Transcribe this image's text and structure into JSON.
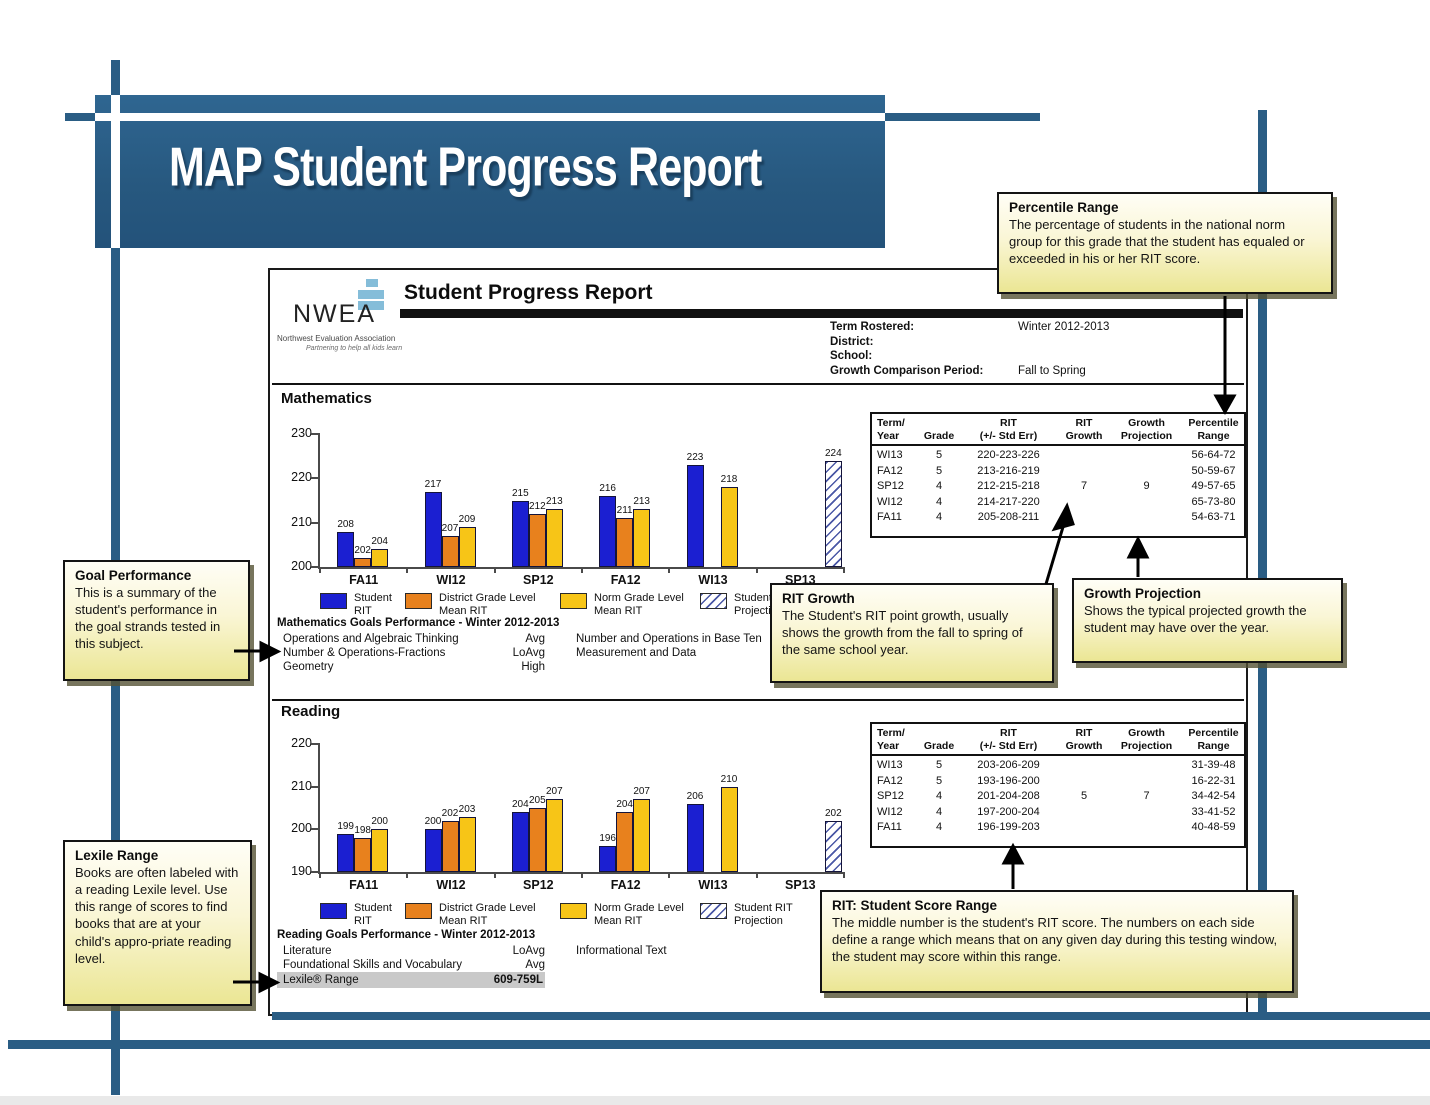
{
  "banner": {
    "title": "MAP Student Progress Report"
  },
  "report_header": {
    "logo": {
      "name": "NWEA",
      "subtitle": "Northwest Evaluation Association",
      "tagline": "Partnering to help all kids learn"
    },
    "title": "Student Progress Report",
    "info_rows": [
      {
        "label": "Term Rostered:",
        "value": "Winter 2012-2013"
      },
      {
        "label": "District:",
        "value": ""
      },
      {
        "label": "School:",
        "value": ""
      },
      {
        "label": "Growth Comparison Period:",
        "value": "Fall to Spring"
      }
    ]
  },
  "sections": {
    "math": "Mathematics",
    "reading": "Reading"
  },
  "legend": {
    "items": [
      {
        "key": "student-rit",
        "label": "Student RIT",
        "color": "#1b1fd1",
        "type": "solid"
      },
      {
        "key": "district-grade-mean",
        "label": "District Grade Level Mean RIT",
        "color": "#e8811d",
        "type": "solid"
      },
      {
        "key": "norm-grade-mean",
        "label": "Norm Grade Level Mean RIT",
        "color": "#f7c517",
        "type": "solid"
      },
      {
        "key": "student-rit-projection",
        "label": "Student RIT Projection",
        "color": "#2a3a96",
        "type": "hatched"
      }
    ]
  },
  "chart_data": [
    {
      "type": "bar",
      "title": "Mathematics",
      "categories": [
        "FA11",
        "WI12",
        "SP12",
        "FA12",
        "WI13",
        "SP13"
      ],
      "series": [
        {
          "name": "Student RIT",
          "values": [
            208,
            217,
            215,
            216,
            223,
            null
          ]
        },
        {
          "name": "District Grade Level Mean RIT",
          "values": [
            202,
            207,
            212,
            211,
            null,
            null
          ]
        },
        {
          "name": "Norm Grade Level Mean RIT",
          "values": [
            204,
            209,
            213,
            213,
            218,
            null
          ]
        },
        {
          "name": "Student RIT Projection",
          "values": [
            null,
            null,
            null,
            null,
            null,
            224
          ]
        }
      ],
      "ylim": [
        200,
        230
      ],
      "yticks": [
        230,
        220,
        210,
        200
      ],
      "grid": false,
      "legend_position": "bottom"
    },
    {
      "type": "bar",
      "title": "Reading",
      "categories": [
        "FA11",
        "WI12",
        "SP12",
        "FA12",
        "WI13",
        "SP13"
      ],
      "series": [
        {
          "name": "Student RIT",
          "values": [
            199,
            200,
            204,
            196,
            206,
            null
          ]
        },
        {
          "name": "District Grade Level Mean RIT",
          "values": [
            198,
            202,
            205,
            204,
            null,
            null
          ]
        },
        {
          "name": "Norm Grade Level Mean RIT",
          "values": [
            200,
            203,
            207,
            207,
            210,
            null
          ]
        },
        {
          "name": "Student RIT Projection",
          "values": [
            null,
            null,
            null,
            null,
            null,
            202
          ]
        }
      ],
      "ylim": [
        190,
        220
      ],
      "yticks": [
        220,
        210,
        200,
        190
      ],
      "grid": false,
      "legend_position": "bottom"
    }
  ],
  "rit_tables": {
    "headers": [
      "Term/\nYear",
      "Grade",
      "RIT\n(+/- Std Err)",
      "RIT\nGrowth",
      "Growth\nProjection",
      "Percentile\nRange"
    ],
    "math_rows": [
      [
        "WI13",
        "5",
        "220-223-226",
        "",
        "",
        "56-64-72"
      ],
      [
        "FA12",
        "5",
        "213-216-219",
        "",
        "",
        "50-59-67"
      ],
      [
        "SP12",
        "4",
        "212-215-218",
        "7",
        "9",
        "49-57-65"
      ],
      [
        "WI12",
        "4",
        "214-217-220",
        "",
        "",
        "65-73-80"
      ],
      [
        "FA11",
        "4",
        "205-208-211",
        "",
        "",
        "54-63-71"
      ]
    ],
    "reading_rows": [
      [
        "WI13",
        "5",
        "203-206-209",
        "",
        "",
        "31-39-48"
      ],
      [
        "FA12",
        "5",
        "193-196-200",
        "",
        "",
        "16-22-31"
      ],
      [
        "SP12",
        "4",
        "201-204-208",
        "5",
        "7",
        "34-42-54"
      ],
      [
        "WI12",
        "4",
        "197-200-204",
        "",
        "",
        "33-41-52"
      ],
      [
        "FA11",
        "4",
        "196-199-203",
        "",
        "",
        "40-48-59"
      ]
    ]
  },
  "goals": {
    "math": {
      "title": "Mathematics Goals Performance - Winter 2012-2013",
      "left": [
        {
          "name": "Operations and Algebraic Thinking",
          "value": "Avg"
        },
        {
          "name": "Number & Operations-Fractions",
          "value": "LoAvg"
        },
        {
          "name": "Geometry",
          "value": "High"
        }
      ],
      "right": [
        "Number and Operations in Base Ten",
        "Measurement and Data"
      ]
    },
    "reading": {
      "title": "Reading Goals Performance - Winter 2012-2013",
      "left": [
        {
          "name": "Literature",
          "value": "LoAvg"
        },
        {
          "name": "Foundational Skills and Vocabulary",
          "value": "Avg"
        }
      ],
      "lexile": {
        "name": "Lexile® Range",
        "value": "609-759L"
      },
      "right": [
        "Informational Text"
      ]
    }
  },
  "callouts": {
    "percentile": {
      "title": "Percentile Range",
      "text": "The percentage of students in the national norm group for this grade that the student has equaled or exceeded in his or her RIT score."
    },
    "goal": {
      "title": "Goal Performance",
      "text": "This is a summary of the student's performance in the goal strands tested in this subject."
    },
    "rit_growth": {
      "title": "RIT Growth",
      "text": "The Student's RIT point growth, usually shows the growth from the fall to spring of the same school year."
    },
    "growth_projection": {
      "title": "Growth Projection",
      "text": "Shows the typical projected growth the student may have over the year."
    },
    "lexile": {
      "title": "Lexile Range",
      "text": "Books are often labeled with a reading Lexile level. Use this range of scores to find books that are at your child's appro-priate reading level."
    },
    "rit_range": {
      "title": "RIT: Student Score Range",
      "text": "The middle number is the student's RIT score. The numbers on each side define a range which means that on any given day during this testing window, the student may score within this range."
    }
  },
  "colors": {
    "frame_blue": "#2a5d84",
    "banner_blue": "#27587f",
    "student_rit": "#1b1fd1",
    "district_grade_mean": "#e8811d",
    "norm_grade_mean": "#f7c517",
    "callout_bg": "#f6f1b5",
    "lexile_highlight": "#c9c9c9"
  }
}
